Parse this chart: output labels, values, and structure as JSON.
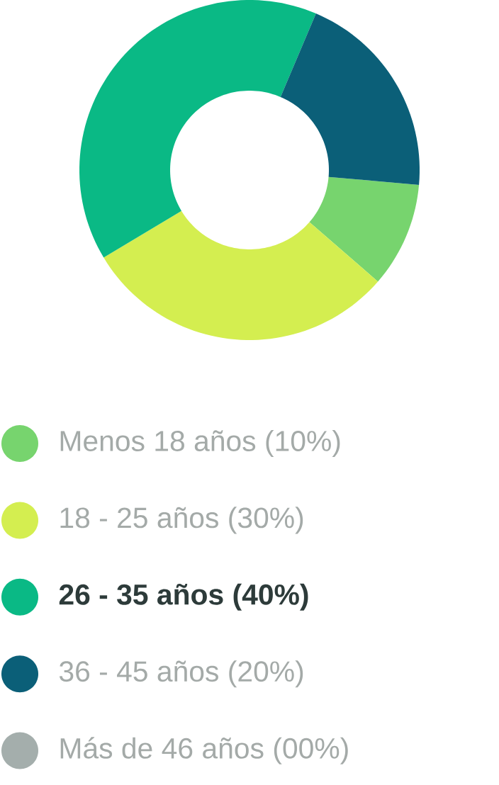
{
  "chart_data": {
    "type": "donut",
    "categories": [
      "Menos 18 años (10%)",
      "18 - 25 años (30%)",
      "26 - 35 años (40%)",
      "36 - 45 años (20%)",
      "Más de 46 años (00%)"
    ],
    "values": [
      10,
      30,
      40,
      20,
      0
    ],
    "colors": [
      "#77d46e",
      "#d4ee50",
      "#0ab985",
      "#0b5f78",
      "#a4aeac"
    ],
    "legend": "bottom"
  }
}
